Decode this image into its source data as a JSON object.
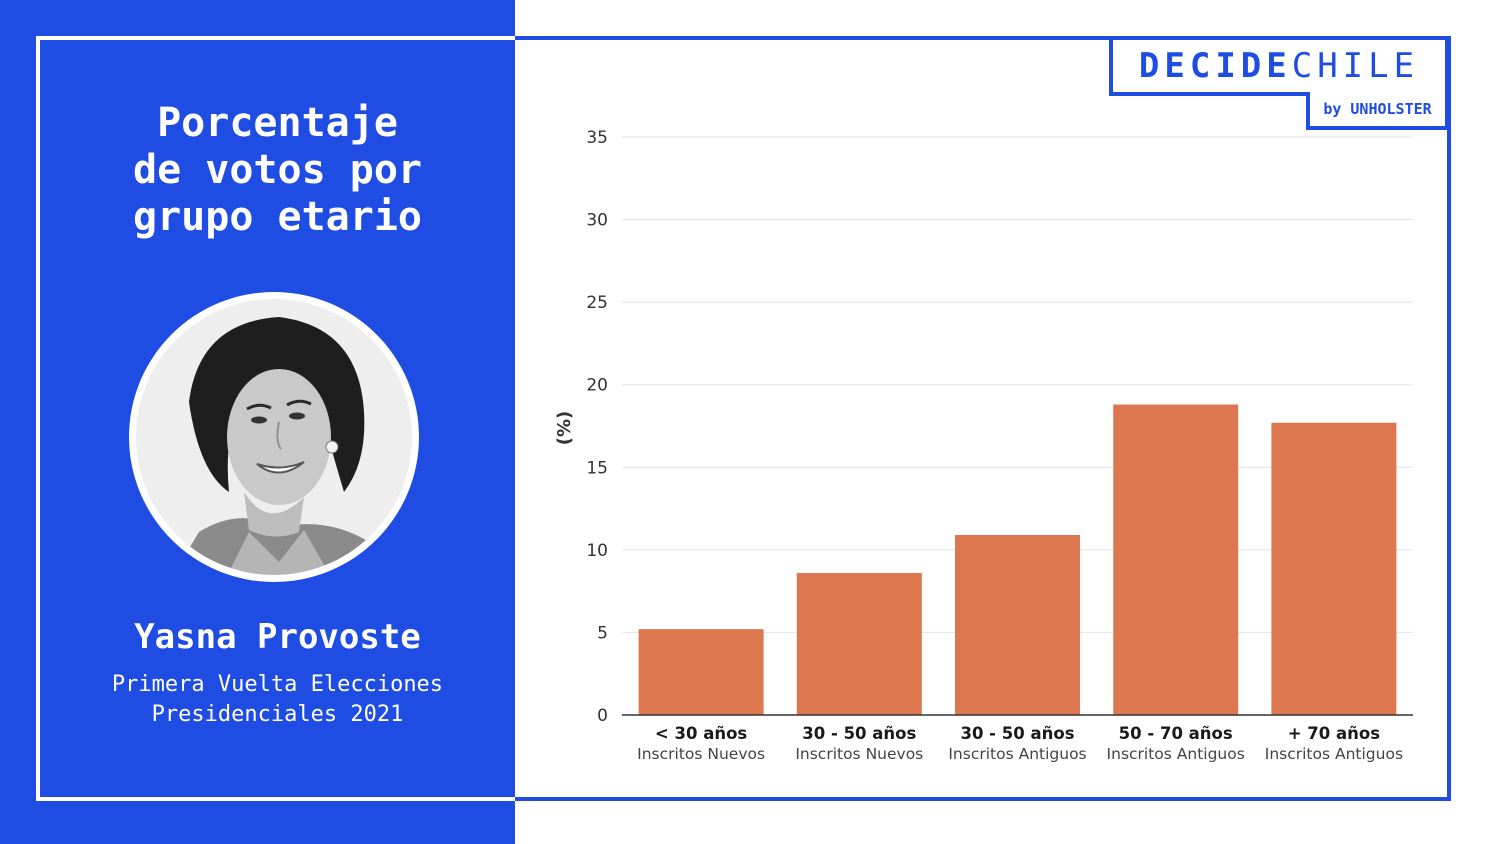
{
  "title": "Porcentaje\nde votos por\ngrupo etario",
  "candidate": {
    "name": "Yasna Provoste",
    "subtitle": "Primera Vuelta Elecciones\nPresidenciales 2021"
  },
  "logo": {
    "part1": "DECIDE",
    "part2": "CHILE",
    "by": "by UNHOLSTER"
  },
  "colors": {
    "brand_blue": "#1f4de4",
    "bar": "#dc7750"
  },
  "chart_data": {
    "type": "bar",
    "categories": [
      {
        "label": "< 30 años",
        "sublabel": "Inscritos Nuevos"
      },
      {
        "label": "30 - 50 años",
        "sublabel": "Inscritos Nuevos"
      },
      {
        "label": "30 - 50 años",
        "sublabel": "Inscritos Antiguos"
      },
      {
        "label": "50 - 70 años",
        "sublabel": "Inscritos Antiguos"
      },
      {
        "label": "+ 70 años",
        "sublabel": "Inscritos Antiguos"
      }
    ],
    "values": [
      5.2,
      8.6,
      10.9,
      18.8,
      17.7
    ],
    "ylabel": "(%)",
    "ylim": [
      0,
      35
    ],
    "yticks": [
      0,
      5,
      10,
      15,
      20,
      25,
      30,
      35
    ],
    "grid": true
  }
}
